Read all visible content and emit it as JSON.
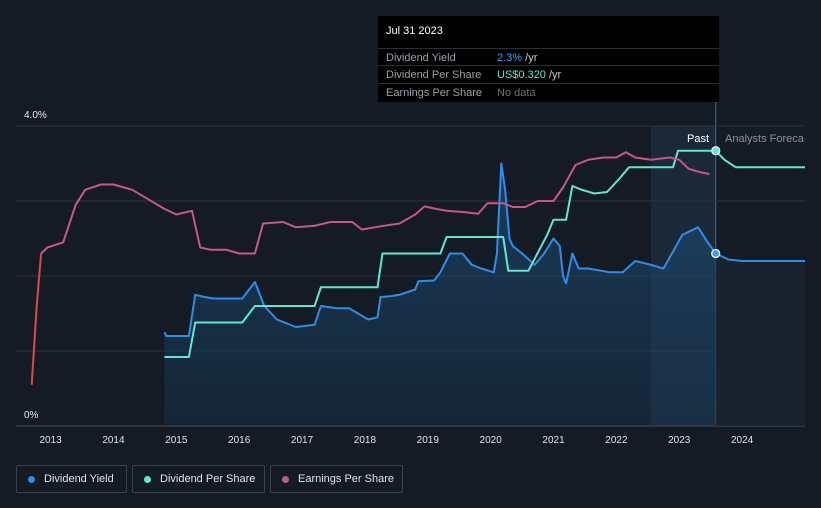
{
  "tooltip": {
    "date": "Jul 31 2023",
    "rows": [
      {
        "label": "Dividend Yield",
        "value": "2.3%",
        "unit": " /yr",
        "color": "#3ba0f5"
      },
      {
        "label": "Dividend Per Share",
        "value": "US$0.320",
        "unit": " /yr",
        "color": "#5ee8d2"
      },
      {
        "label": "Earnings Per Share",
        "value": "No data",
        "unit": "",
        "color": "#6b7078"
      }
    ]
  },
  "period_labels": {
    "past": "Past",
    "forecast": "Analysts Foreca"
  },
  "legend": [
    {
      "label": "Dividend Yield",
      "color": "#2d8ee8"
    },
    {
      "label": "Dividend Per Share",
      "color": "#5ee8d2"
    },
    {
      "label": "Earnings Per Share",
      "color": "#c8558e"
    }
  ],
  "chart_data": {
    "type": "line",
    "title": "",
    "xlabel": "",
    "ylabel": "",
    "y_tick_labels": [
      "4.0%",
      "0%"
    ],
    "ylim": [
      0,
      4.0
    ],
    "xlim": [
      2012.45,
      2025.0
    ],
    "x_ticks": [
      2013,
      2014,
      2015,
      2016,
      2017,
      2018,
      2019,
      2020,
      2021,
      2022,
      2023,
      2024
    ],
    "x_tick_labels": [
      "2013",
      "2014",
      "2015",
      "2016",
      "2017",
      "2018",
      "2019",
      "2020",
      "2021",
      "2022",
      "2023",
      "2024"
    ],
    "grid": true,
    "shaded_region": [
      2022.55,
      2023.58
    ],
    "divider_x": 2023.58,
    "series": [
      {
        "name": "Dividend Yield",
        "color": "#2d8ee8",
        "fill": true,
        "points": [
          [
            2014.81,
            1.25
          ],
          [
            2014.84,
            1.2
          ],
          [
            2015.2,
            1.2
          ],
          [
            2015.3,
            1.75
          ],
          [
            2015.45,
            1.72
          ],
          [
            2015.6,
            1.7
          ],
          [
            2016.05,
            1.7
          ],
          [
            2016.25,
            1.92
          ],
          [
            2016.4,
            1.6
          ],
          [
            2016.6,
            1.42
          ],
          [
            2016.9,
            1.32
          ],
          [
            2017.2,
            1.35
          ],
          [
            2017.3,
            1.6
          ],
          [
            2017.55,
            1.57
          ],
          [
            2017.75,
            1.57
          ],
          [
            2017.85,
            1.52
          ],
          [
            2018.05,
            1.42
          ],
          [
            2018.2,
            1.45
          ],
          [
            2018.25,
            1.72
          ],
          [
            2018.4,
            1.73
          ],
          [
            2018.55,
            1.75
          ],
          [
            2018.8,
            1.82
          ],
          [
            2018.85,
            1.93
          ],
          [
            2019.1,
            1.94
          ],
          [
            2019.2,
            2.05
          ],
          [
            2019.35,
            2.3
          ],
          [
            2019.55,
            2.3
          ],
          [
            2019.7,
            2.15
          ],
          [
            2019.85,
            2.1
          ],
          [
            2020.05,
            2.05
          ],
          [
            2020.1,
            2.3
          ],
          [
            2020.17,
            3.5
          ],
          [
            2020.23,
            3.15
          ],
          [
            2020.3,
            2.5
          ],
          [
            2020.35,
            2.4
          ],
          [
            2020.5,
            2.3
          ],
          [
            2020.7,
            2.15
          ],
          [
            2020.85,
            2.3
          ],
          [
            2021.0,
            2.5
          ],
          [
            2021.1,
            2.4
          ],
          [
            2021.15,
            2.0
          ],
          [
            2021.2,
            1.9
          ],
          [
            2021.3,
            2.3
          ],
          [
            2021.4,
            2.1
          ],
          [
            2021.55,
            2.1
          ],
          [
            2021.9,
            2.05
          ],
          [
            2022.1,
            2.05
          ],
          [
            2022.3,
            2.2
          ],
          [
            2022.55,
            2.15
          ],
          [
            2022.75,
            2.1
          ],
          [
            2022.85,
            2.25
          ],
          [
            2023.05,
            2.55
          ],
          [
            2023.3,
            2.65
          ],
          [
            2023.45,
            2.45
          ],
          [
            2023.58,
            2.3
          ]
        ]
      },
      {
        "name": "Dividend Yield (forecast)",
        "color": "#2d8ee8",
        "forecast": true,
        "points": [
          [
            2023.58,
            2.3
          ],
          [
            2023.78,
            2.22
          ],
          [
            2024.0,
            2.2
          ],
          [
            2025.0,
            2.2
          ]
        ]
      },
      {
        "name": "Dividend Per Share",
        "color": "#5ee8d2",
        "points": [
          [
            2014.81,
            0.92
          ],
          [
            2015.2,
            0.92
          ],
          [
            2015.3,
            1.38
          ],
          [
            2016.05,
            1.38
          ],
          [
            2016.25,
            1.6
          ],
          [
            2017.2,
            1.6
          ],
          [
            2017.3,
            1.85
          ],
          [
            2018.2,
            1.85
          ],
          [
            2018.28,
            2.3
          ],
          [
            2019.2,
            2.3
          ],
          [
            2019.3,
            2.52
          ],
          [
            2020.2,
            2.52
          ],
          [
            2020.28,
            2.07
          ],
          [
            2020.6,
            2.07
          ],
          [
            2020.9,
            2.55
          ],
          [
            2021.0,
            2.75
          ],
          [
            2021.2,
            2.75
          ],
          [
            2021.3,
            3.2
          ],
          [
            2021.45,
            3.15
          ],
          [
            2021.65,
            3.1
          ],
          [
            2021.85,
            3.12
          ],
          [
            2022.05,
            3.3
          ],
          [
            2022.2,
            3.45
          ],
          [
            2022.55,
            3.45
          ],
          [
            2022.9,
            3.45
          ],
          [
            2022.98,
            3.67
          ],
          [
            2023.58,
            3.67
          ]
        ]
      },
      {
        "name": "Dividend Per Share (forecast)",
        "color": "#5ee8d2",
        "forecast": true,
        "points": [
          [
            2023.58,
            3.67
          ],
          [
            2023.72,
            3.55
          ],
          [
            2023.9,
            3.45
          ],
          [
            2024.2,
            3.45
          ],
          [
            2025.0,
            3.45
          ]
        ]
      },
      {
        "name": "Earnings Per Share",
        "color": "#c8558e",
        "early_color": "#e04848",
        "early_until": 2012.85,
        "points": [
          [
            2012.7,
            0.55
          ],
          [
            2012.78,
            1.6
          ],
          [
            2012.85,
            2.3
          ],
          [
            2012.95,
            2.38
          ],
          [
            2013.2,
            2.45
          ],
          [
            2013.4,
            2.95
          ],
          [
            2013.55,
            3.15
          ],
          [
            2013.8,
            3.22
          ],
          [
            2014.0,
            3.22
          ],
          [
            2014.3,
            3.15
          ],
          [
            2014.5,
            3.05
          ],
          [
            2014.8,
            2.9
          ],
          [
            2015.0,
            2.82
          ],
          [
            2015.25,
            2.87
          ],
          [
            2015.38,
            2.38
          ],
          [
            2015.55,
            2.35
          ],
          [
            2015.8,
            2.35
          ],
          [
            2016.0,
            2.3
          ],
          [
            2016.25,
            2.3
          ],
          [
            2016.38,
            2.7
          ],
          [
            2016.7,
            2.72
          ],
          [
            2016.9,
            2.65
          ],
          [
            2017.2,
            2.67
          ],
          [
            2017.45,
            2.72
          ],
          [
            2017.8,
            2.72
          ],
          [
            2017.95,
            2.62
          ],
          [
            2018.3,
            2.67
          ],
          [
            2018.55,
            2.7
          ],
          [
            2018.8,
            2.82
          ],
          [
            2018.95,
            2.93
          ],
          [
            2019.1,
            2.9
          ],
          [
            2019.3,
            2.87
          ],
          [
            2019.6,
            2.85
          ],
          [
            2019.8,
            2.83
          ],
          [
            2019.95,
            2.97
          ],
          [
            2020.2,
            2.97
          ],
          [
            2020.35,
            2.92
          ],
          [
            2020.55,
            2.92
          ],
          [
            2020.75,
            3.0
          ],
          [
            2021.0,
            3.0
          ],
          [
            2021.15,
            3.18
          ],
          [
            2021.35,
            3.48
          ],
          [
            2021.55,
            3.55
          ],
          [
            2021.8,
            3.58
          ],
          [
            2022.0,
            3.58
          ],
          [
            2022.15,
            3.65
          ],
          [
            2022.3,
            3.58
          ],
          [
            2022.55,
            3.55
          ],
          [
            2022.85,
            3.58
          ],
          [
            2023.0,
            3.55
          ],
          [
            2023.15,
            3.43
          ],
          [
            2023.35,
            3.38
          ],
          [
            2023.48,
            3.36
          ]
        ]
      }
    ],
    "markers": [
      {
        "series": "Dividend Per Share",
        "x": 2023.58,
        "y": 3.67,
        "color": "#5ee8d2"
      },
      {
        "series": "Dividend Yield",
        "x": 2023.58,
        "y": 2.3,
        "color": "#3ba0f5"
      }
    ]
  }
}
